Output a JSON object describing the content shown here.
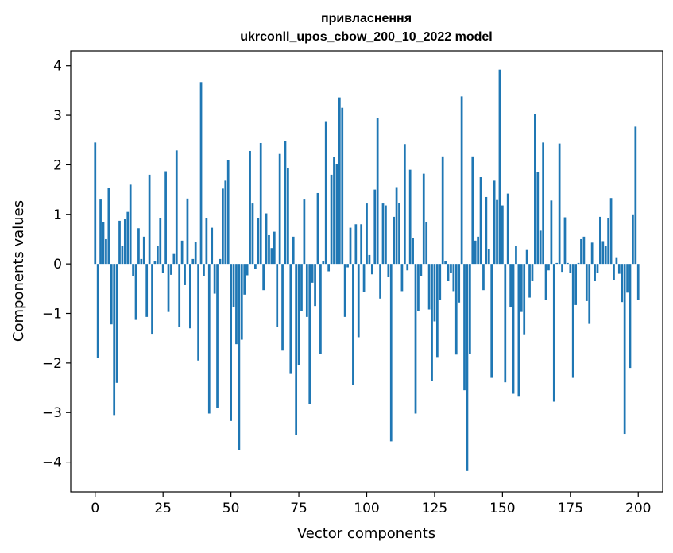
{
  "chart_data": {
    "type": "bar",
    "title_line1": "привласнення",
    "title_line2": "ukrconll_upos_cbow_200_10_2022 model",
    "xlabel": "Vector components",
    "ylabel": "Components values",
    "xlim": [
      -9,
      209
    ],
    "ylim": [
      -4.6,
      4.3
    ],
    "xticks": [
      0,
      25,
      50,
      75,
      100,
      125,
      150,
      175,
      200
    ],
    "xtick_labels": [
      "0",
      "25",
      "50",
      "75",
      "100",
      "125",
      "150",
      "175",
      "200"
    ],
    "yticks": [
      -4,
      -3,
      -2,
      -1,
      0,
      1,
      2,
      3,
      4
    ],
    "ytick_labels": [
      "−4",
      "−3",
      "−2",
      "−1",
      "0",
      "1",
      "2",
      "3",
      "4"
    ],
    "bar_color": "#1f77b4",
    "values": [
      2.45,
      -1.9,
      1.3,
      0.85,
      0.5,
      1.53,
      -1.22,
      -3.05,
      -2.4,
      0.87,
      0.37,
      0.9,
      1.05,
      1.6,
      -0.25,
      -1.13,
      0.72,
      0.1,
      0.55,
      -1.07,
      1.8,
      -1.41,
      0.05,
      0.37,
      0.93,
      -0.18,
      1.87,
      -0.97,
      -0.22,
      0.2,
      2.29,
      -1.28,
      0.47,
      -0.43,
      1.32,
      -1.3,
      0.1,
      0.45,
      -1.95,
      3.67,
      -0.25,
      0.93,
      -3.02,
      0.73,
      -0.6,
      -2.9,
      0.1,
      1.52,
      1.68,
      2.1,
      -3.17,
      -0.87,
      -1.62,
      -3.75,
      -1.53,
      -0.62,
      -0.23,
      2.28,
      1.22,
      -0.1,
      0.92,
      2.44,
      -0.53,
      1.02,
      0.58,
      0.32,
      0.65,
      -1.27,
      2.22,
      -1.75,
      2.48,
      1.93,
      -2.22,
      0.55,
      -3.45,
      -2.05,
      -0.95,
      1.3,
      -1.07,
      -2.83,
      -0.38,
      -0.85,
      1.43,
      -1.82,
      0.05,
      2.88,
      -0.15,
      1.8,
      2.16,
      2.02,
      3.36,
      3.15,
      -1.07,
      -0.07,
      0.73,
      -2.45,
      0.8,
      -1.48,
      0.8,
      -0.56,
      1.22,
      0.18,
      -0.21,
      1.5,
      2.95,
      -0.7,
      1.22,
      1.18,
      -0.27,
      -3.58,
      0.95,
      1.55,
      1.23,
      -0.55,
      2.42,
      -0.13,
      1.9,
      0.52,
      -3.02,
      -0.95,
      -0.25,
      1.82,
      0.84,
      -0.92,
      -2.37,
      -1.16,
      -1.88,
      -0.73,
      2.17,
      0.05,
      -0.35,
      -0.18,
      -0.55,
      -1.83,
      -0.78,
      3.38,
      -2.55,
      -4.18,
      -1.82,
      2.17,
      0.47,
      0.55,
      1.75,
      -0.53,
      1.35,
      0.3,
      -2.3,
      1.68,
      1.29,
      3.92,
      1.18,
      -2.39,
      1.42,
      -0.88,
      -2.62,
      0.37,
      -2.68,
      -0.97,
      -1.42,
      0.28,
      -0.68,
      -0.35,
      3.02,
      1.85,
      0.67,
      2.45,
      -0.73,
      -0.13,
      1.28,
      -2.78,
      0.02,
      2.43,
      -0.16,
      0.94,
      0.02,
      -0.18,
      -2.3,
      -0.83,
      0.02,
      0.5,
      0.55,
      -0.75,
      -1.21,
      0.43,
      -0.35,
      -0.18,
      0.95,
      0.46,
      0.37,
      0.92,
      1.33,
      -0.33,
      0.12,
      -0.2,
      -0.77,
      -3.43,
      -0.58,
      -2.1,
      1.0,
      2.77,
      -0.73
    ]
  }
}
